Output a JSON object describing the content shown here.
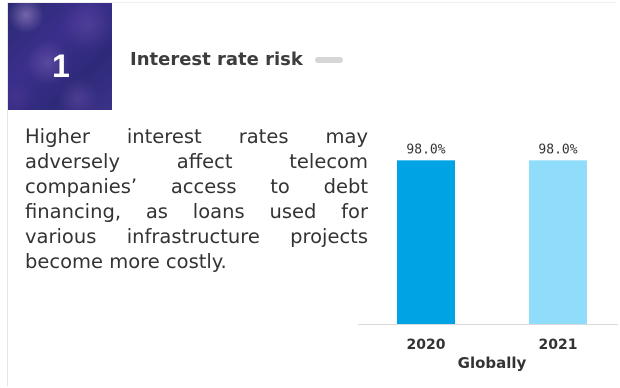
{
  "card": {
    "number": "1",
    "title": "Interest rate risk",
    "description": "Higher interest rates may adversely affect telecom companies’ access to debt financing, as loans used for various infrastructure projects become more costly."
  },
  "colors": {
    "bar_2020": "#00a4e4",
    "bar_2021": "#90dcfb",
    "title_dash": "#d6d6d6"
  },
  "chart_data": {
    "type": "bar",
    "categories": [
      "2020",
      "2021"
    ],
    "values": [
      98.0,
      98.0
    ],
    "data_labels": [
      "98.0%",
      "98.0%"
    ],
    "xlabel": "Globally",
    "ylabel": "",
    "ylim": [
      0,
      100
    ],
    "grid": false,
    "legend": "none"
  }
}
